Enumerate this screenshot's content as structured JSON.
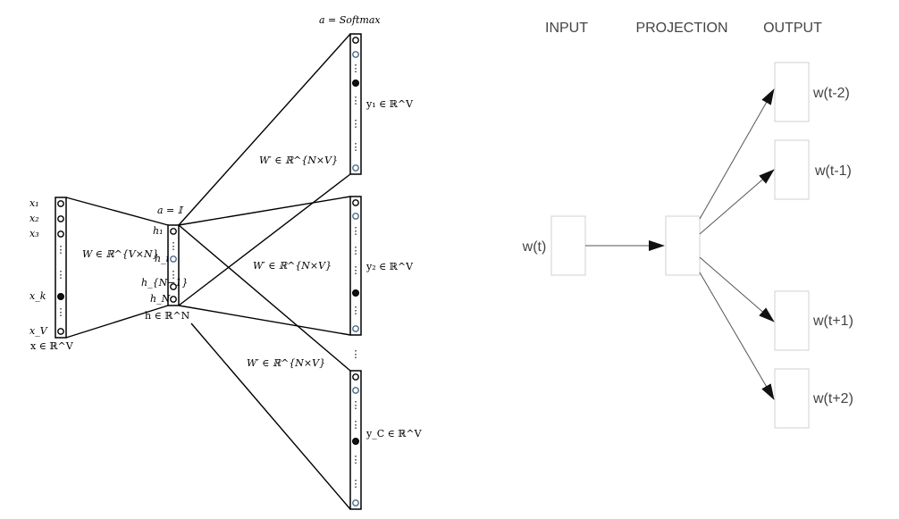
{
  "left_diagram": {
    "activation_top": "a = Softmax",
    "activation_hidden": "a = 𝕀",
    "input_vector_label": "x ∈ ℝ^V",
    "input_labels": [
      "x₁",
      "x₂",
      "x₃",
      "x_k",
      "x_V"
    ],
    "hidden_vector_label": "h ∈ ℝ^N",
    "hidden_labels": [
      "h₁",
      "h_i",
      "h_{N−1}",
      "h_N"
    ],
    "input_weight": "W ∈ ℝ^{V×N}",
    "output_weight": "W′ ∈ ℝ^{N×V}",
    "outputs": [
      "y₁ ∈ ℝ^V",
      "y₂ ∈ ℝ^V",
      "y_C ∈ ℝ^V"
    ],
    "between_outputs": "⋮"
  },
  "right_diagram": {
    "headers": [
      "INPUT",
      "PROJECTION",
      "OUTPUT"
    ],
    "input_word": "w(t)",
    "output_words": [
      "w(t-2)",
      "w(t-1)",
      "w(t+1)",
      "w(t+2)"
    ],
    "box_border_color": "#d0d0d0",
    "arrow_color": "#555555"
  }
}
